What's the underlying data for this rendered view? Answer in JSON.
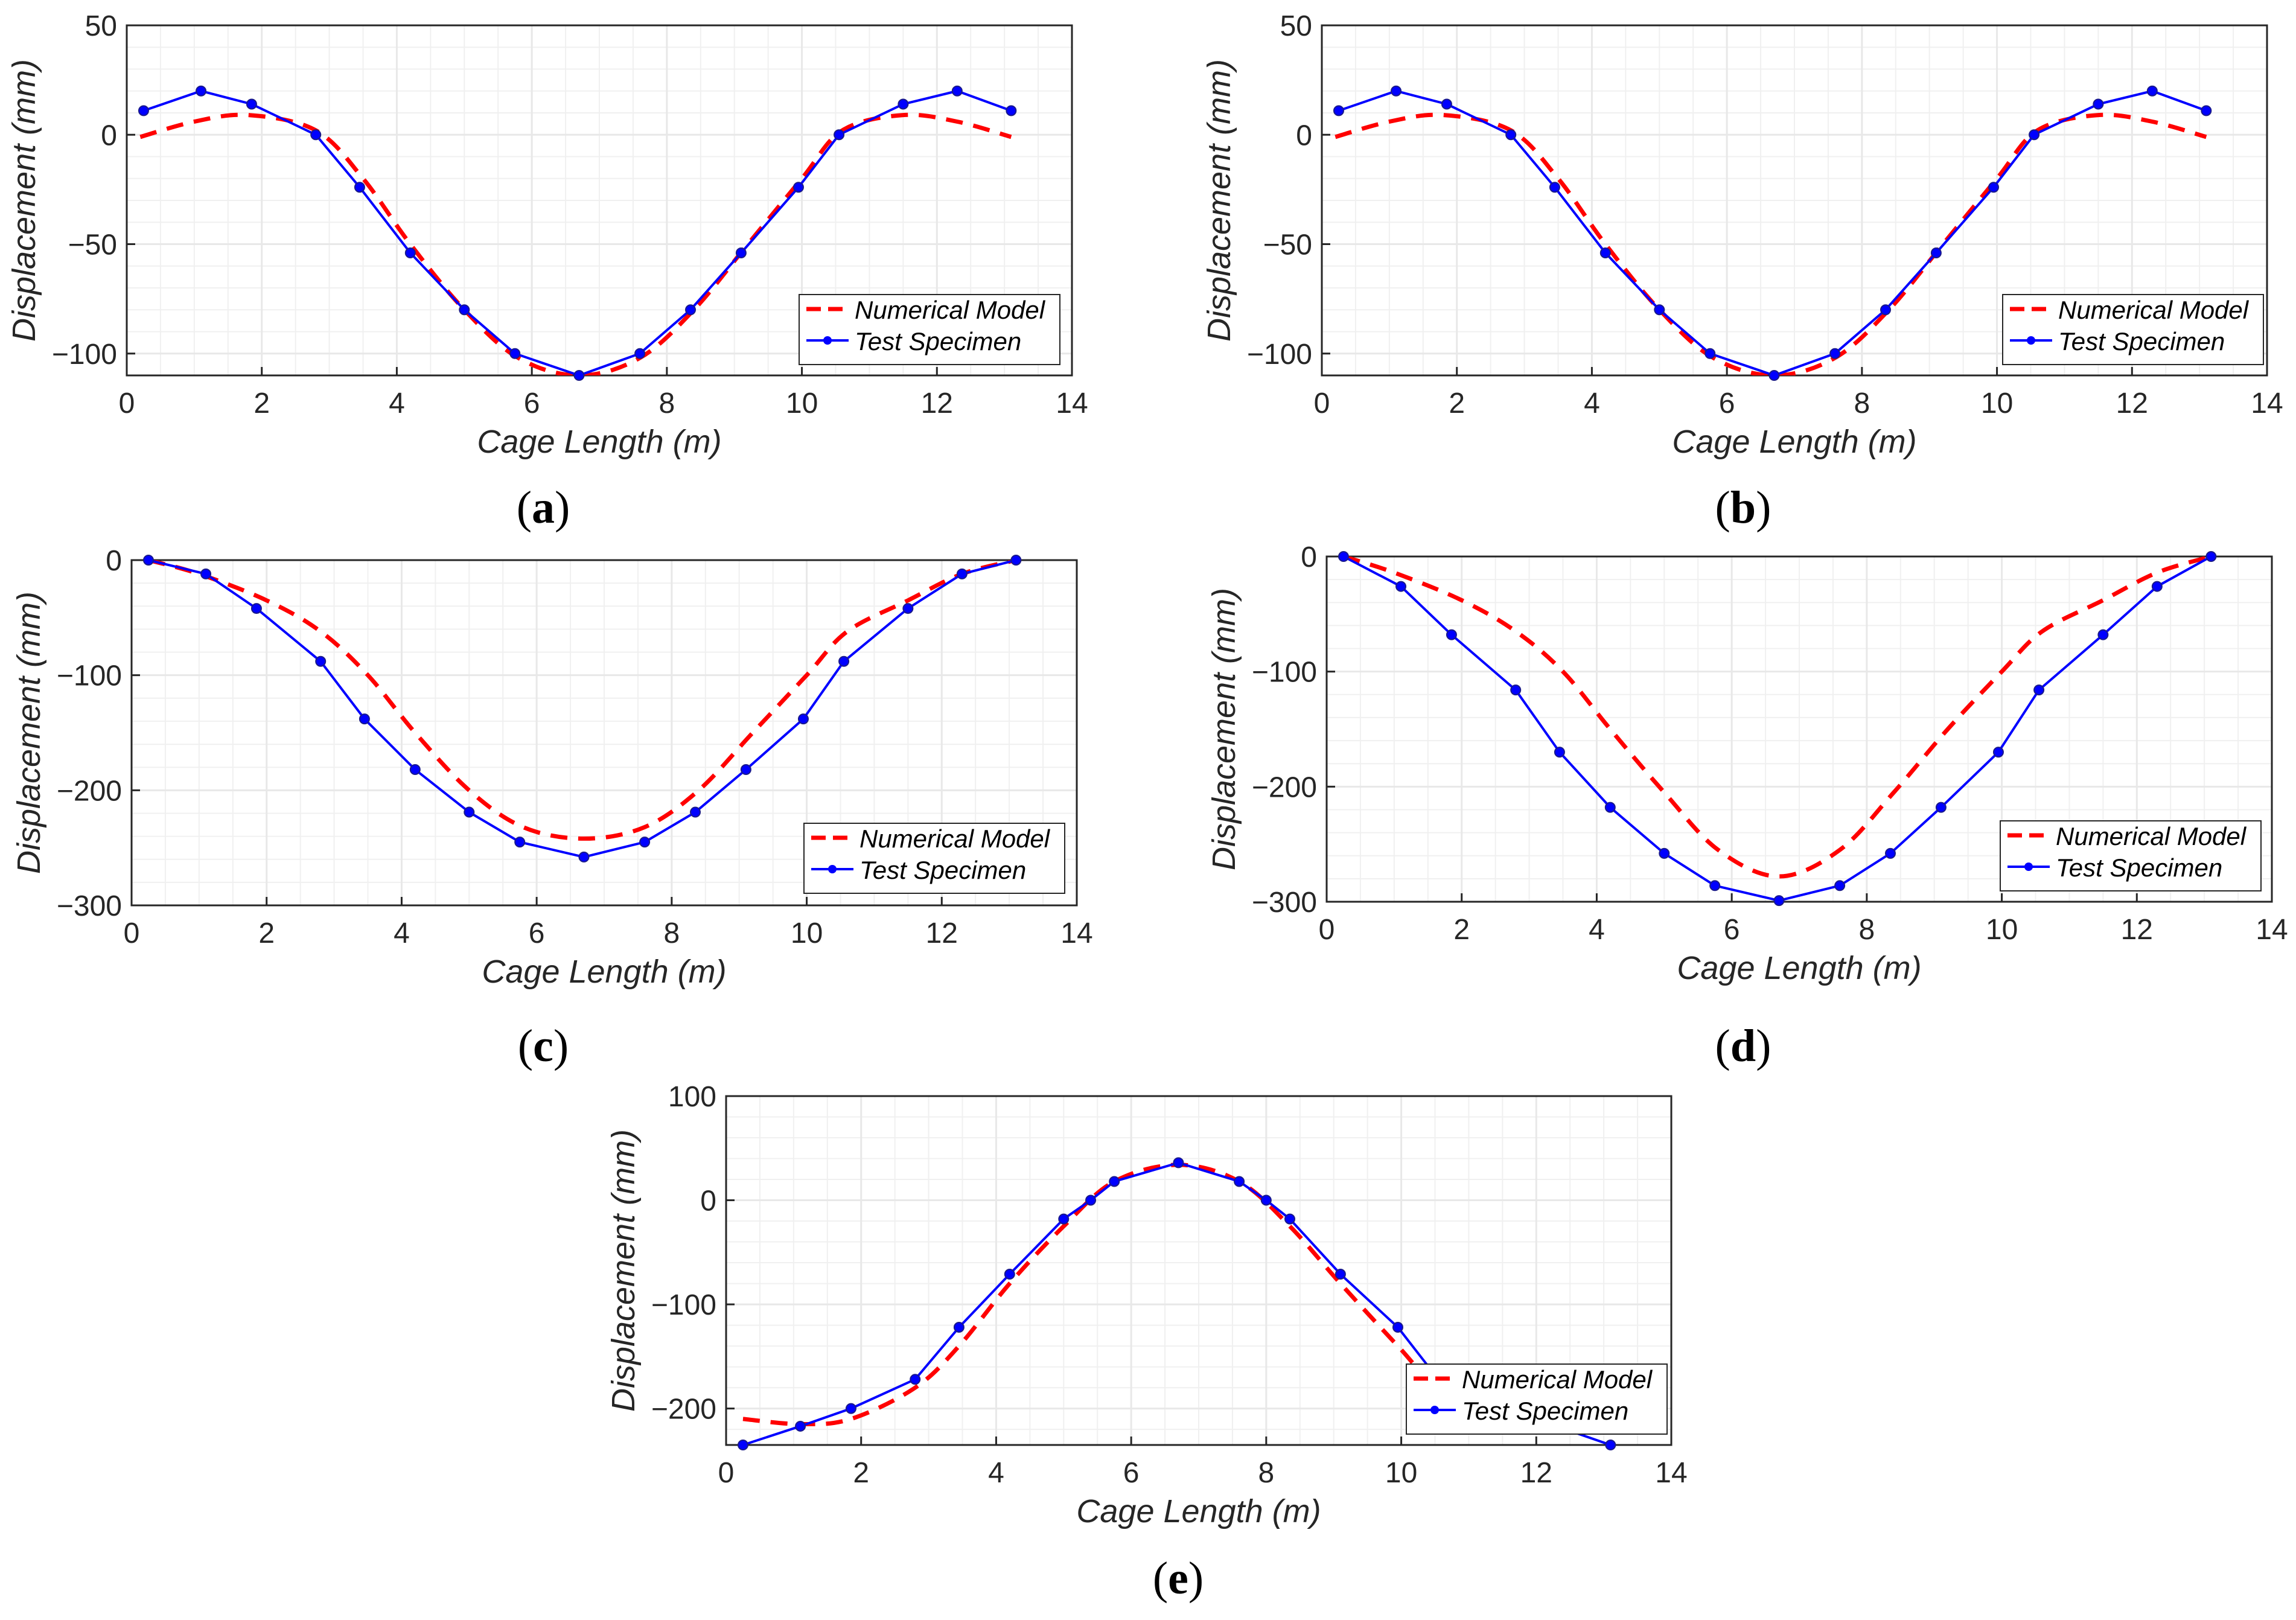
{
  "colors": {
    "numerical": "#ff0000",
    "test": "#0000ff",
    "grid": "#e8e8e8",
    "axis": "#262626"
  },
  "chart_data": [
    {
      "panel": "a",
      "type": "line",
      "xlabel": "Cage Length (m)",
      "ylabel": "Displacement (mm)",
      "xlim": [
        0,
        14
      ],
      "ylim": [
        -110,
        50
      ],
      "xticks": [
        0,
        2,
        4,
        6,
        8,
        10,
        12,
        14
      ],
      "yticks": [
        -100,
        -50,
        0,
        50
      ],
      "ytick_labels": [
        "−100",
        "−50",
        "0",
        "50"
      ],
      "grid": true,
      "legend_position": "bottom-right",
      "series": [
        {
          "name": "Numerical Model",
          "style": "dashed",
          "x": [
            0.2,
            1.0,
            1.8,
            2.8,
            3.5,
            4.2,
            5.0,
            5.8,
            6.7,
            7.6,
            8.4,
            9.2,
            10.0,
            10.6,
            11.5,
            12.3,
            13.1
          ],
          "y": [
            -1,
            6,
            9,
            2,
            -20,
            -50,
            -80,
            -102,
            -110,
            -102,
            -80,
            -50,
            -20,
            2,
            9,
            6,
            -1
          ]
        },
        {
          "name": "Test Specimen",
          "style": "solid-markers",
          "x": [
            0.25,
            1.1,
            1.85,
            2.8,
            3.45,
            4.2,
            5.0,
            5.75,
            6.7,
            7.6,
            8.35,
            9.1,
            9.95,
            10.55,
            11.5,
            12.3,
            13.1
          ],
          "y": [
            11,
            20,
            14,
            0,
            -24,
            -54,
            -80,
            -100,
            -110,
            -100,
            -80,
            -54,
            -24,
            0,
            14,
            20,
            11
          ]
        }
      ]
    },
    {
      "panel": "b",
      "type": "line",
      "xlabel": "Cage Length (m)",
      "ylabel": "Displacement (mm)",
      "xlim": [
        0,
        14
      ],
      "ylim": [
        -110,
        50
      ],
      "xticks": [
        0,
        2,
        4,
        6,
        8,
        10,
        12,
        14
      ],
      "yticks": [
        -100,
        -50,
        0,
        50
      ],
      "ytick_labels": [
        "−100",
        "−50",
        "0",
        "50"
      ],
      "grid": true,
      "legend_position": "bottom-right",
      "series": [
        {
          "name": "Numerical Model",
          "style": "dashed",
          "x": [
            0.2,
            1.0,
            1.8,
            2.8,
            3.5,
            4.2,
            5.0,
            5.8,
            6.7,
            7.6,
            8.4,
            9.2,
            10.0,
            10.6,
            11.5,
            12.3,
            13.1
          ],
          "y": [
            -1,
            6,
            9,
            2,
            -20,
            -50,
            -80,
            -102,
            -110,
            -102,
            -80,
            -50,
            -20,
            2,
            9,
            6,
            -1
          ]
        },
        {
          "name": "Test Specimen",
          "style": "solid-markers",
          "x": [
            0.25,
            1.1,
            1.85,
            2.8,
            3.45,
            4.2,
            5.0,
            5.75,
            6.7,
            7.6,
            8.35,
            9.1,
            9.95,
            10.55,
            11.5,
            12.3,
            13.1
          ],
          "y": [
            11,
            20,
            14,
            0,
            -24,
            -54,
            -80,
            -100,
            -110,
            -100,
            -80,
            -54,
            -24,
            0,
            14,
            20,
            11
          ]
        }
      ]
    },
    {
      "panel": "c",
      "type": "line",
      "xlabel": "Cage Length (m)",
      "ylabel": "Displacement (mm)",
      "xlim": [
        0,
        14
      ],
      "ylim": [
        -300,
        0
      ],
      "xticks": [
        0,
        2,
        4,
        6,
        8,
        10,
        12,
        14
      ],
      "yticks": [
        -300,
        -200,
        -100,
        0
      ],
      "ytick_labels": [
        "−300",
        "−200",
        "−100",
        "0"
      ],
      "grid": true,
      "legend_position": "bottom-right",
      "series": [
        {
          "name": "Numerical Model",
          "style": "dashed",
          "x": [
            0.25,
            1.0,
            2.0,
            2.8,
            3.5,
            4.2,
            5.0,
            5.8,
            6.7,
            7.6,
            8.4,
            9.2,
            10.0,
            10.6,
            11.5,
            12.3,
            13.1
          ],
          "y": [
            0,
            -12,
            -35,
            -62,
            -100,
            -150,
            -200,
            -232,
            -242,
            -232,
            -200,
            -150,
            -100,
            -62,
            -35,
            -12,
            0
          ]
        },
        {
          "name": "Test Specimen",
          "style": "solid-markers",
          "x": [
            0.25,
            1.1,
            1.85,
            2.8,
            3.45,
            4.2,
            5.0,
            5.75,
            6.7,
            7.6,
            8.35,
            9.1,
            9.95,
            10.55,
            11.5,
            12.3,
            13.1
          ],
          "y": [
            0,
            -12,
            -42,
            -88,
            -138,
            -182,
            -219,
            -245,
            -258,
            -245,
            -219,
            -182,
            -138,
            -88,
            -42,
            -12,
            0
          ]
        }
      ]
    },
    {
      "panel": "d",
      "type": "line",
      "xlabel": "Cage Length (m)",
      "ylabel": "Displacement (mm)",
      "xlim": [
        0,
        14
      ],
      "ylim": [
        -300,
        0
      ],
      "xticks": [
        0,
        2,
        4,
        6,
        8,
        10,
        12,
        14
      ],
      "yticks": [
        -300,
        -200,
        -100,
        0
      ],
      "ytick_labels": [
        "−300",
        "−200",
        "−100",
        "0"
      ],
      "grid": true,
      "legend_position": "bottom-right",
      "series": [
        {
          "name": "Numerical Model",
          "style": "dashed",
          "x": [
            0.25,
            1.0,
            2.0,
            2.8,
            3.5,
            4.2,
            5.0,
            5.8,
            6.7,
            7.6,
            8.4,
            9.2,
            10.0,
            10.6,
            11.5,
            12.3,
            13.1
          ],
          "y": [
            0,
            -14,
            -38,
            -65,
            -100,
            -150,
            -205,
            -255,
            -278,
            -255,
            -205,
            -150,
            -100,
            -65,
            -38,
            -14,
            0
          ]
        },
        {
          "name": "Test Specimen",
          "style": "solid-markers",
          "x": [
            0.25,
            1.1,
            1.85,
            2.8,
            3.45,
            4.2,
            5.0,
            5.75,
            6.7,
            7.6,
            8.35,
            9.1,
            9.95,
            10.55,
            11.5,
            12.3,
            13.1
          ],
          "y": [
            0,
            -26,
            -68,
            -116,
            -170,
            -218,
            -258,
            -286,
            -299,
            -286,
            -258,
            -218,
            -170,
            -116,
            -68,
            -26,
            0
          ]
        }
      ]
    },
    {
      "panel": "e",
      "type": "line",
      "xlabel": "Cage Length (m)",
      "ylabel": "Displacement (mm)",
      "xlim": [
        0,
        14
      ],
      "ylim": [
        -235,
        100
      ],
      "xticks": [
        0,
        2,
        4,
        6,
        8,
        10,
        12,
        14
      ],
      "yticks": [
        -200,
        -100,
        0,
        100
      ],
      "ytick_labels": [
        "−200",
        "−100",
        "0",
        "100"
      ],
      "grid": true,
      "legend_position": "bottom-right",
      "series": [
        {
          "name": "Numerical Model",
          "style": "dashed",
          "x": [
            0.25,
            1.1,
            1.85,
            2.8,
            3.45,
            4.2,
            5.0,
            5.75,
            6.7,
            7.6,
            8.35,
            9.1,
            9.95,
            10.55,
            11.5,
            12.3,
            13.1
          ],
          "y": [
            -210,
            -215,
            -210,
            -180,
            -140,
            -80,
            -25,
            18,
            34,
            18,
            -25,
            -80,
            -140,
            -180,
            -210,
            -215,
            -210
          ]
        },
        {
          "name": "Test Specimen",
          "style": "solid-markers",
          "x": [
            0.25,
            1.1,
            1.85,
            2.8,
            3.45,
            4.2,
            5.0,
            5.4,
            5.75,
            6.7,
            7.6,
            8.0,
            8.35,
            9.1,
            9.95,
            10.55,
            11.5,
            12.3,
            13.1
          ],
          "y": [
            -235,
            -217,
            -200,
            -172,
            -122,
            -71,
            -18,
            0,
            18,
            36,
            18,
            0,
            -18,
            -71,
            -122,
            -172,
            -200,
            -217,
            -235
          ]
        }
      ]
    }
  ],
  "panel_labels": [
    {
      "open": "(",
      "letter": "a",
      "close": ")"
    },
    {
      "open": "(",
      "letter": "b",
      "close": ")"
    },
    {
      "open": "(",
      "letter": "c",
      "close": ")"
    },
    {
      "open": "(",
      "letter": "d",
      "close": ")"
    },
    {
      "open": "(",
      "letter": "e",
      "close": ")"
    }
  ]
}
